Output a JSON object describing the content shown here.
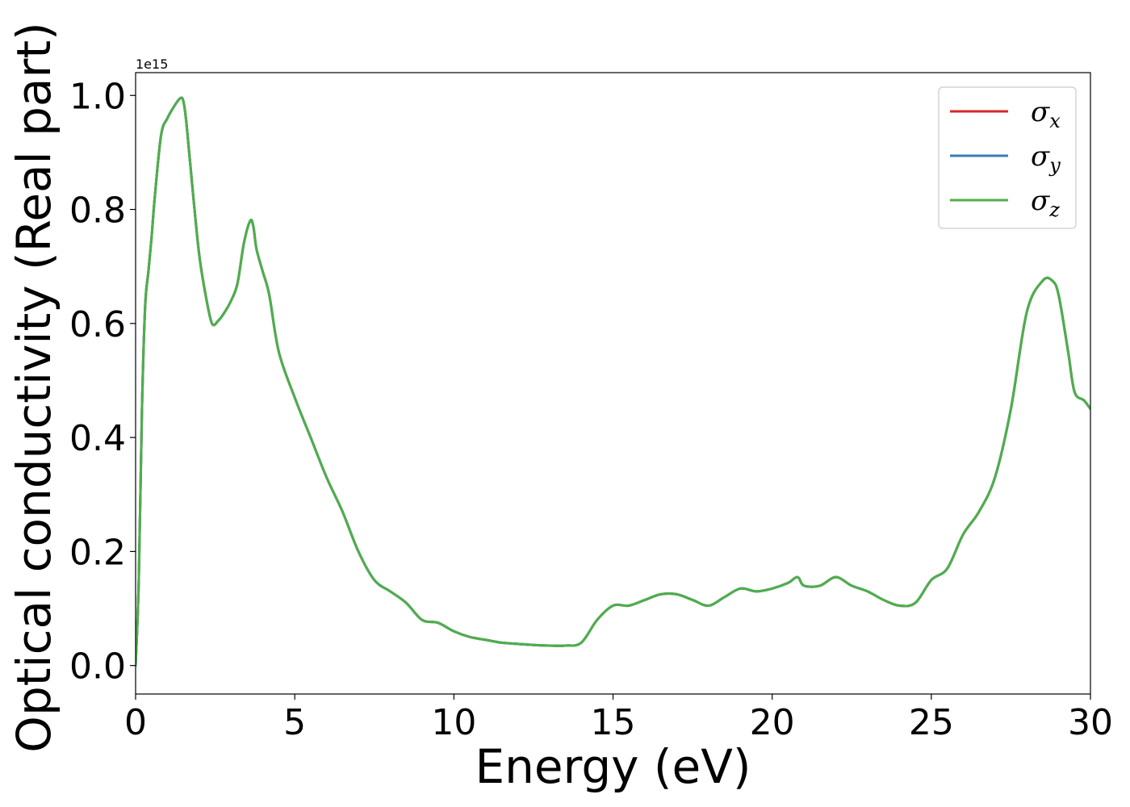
{
  "chart_data": {
    "type": "line",
    "title": "",
    "xlabel": "Energy (eV)",
    "ylabel": "Optical conductivity (Real part)",
    "y_offset_label": "1e15",
    "xlim": [
      0,
      30
    ],
    "ylim": [
      -0.05,
      1.04
    ],
    "x_ticks": [
      0,
      5,
      10,
      15,
      20,
      25,
      30
    ],
    "x_tick_labels": [
      "0",
      "5",
      "10",
      "15",
      "20",
      "25",
      "30"
    ],
    "y_ticks": [
      0.0,
      0.2,
      0.4,
      0.6,
      0.8,
      1.0
    ],
    "y_tick_labels": [
      "0.0",
      "0.2",
      "0.4",
      "0.6",
      "0.8",
      "1.0"
    ],
    "grid": false,
    "legend_position": "top-right",
    "x": [
      0,
      0.1,
      0.2,
      0.3,
      0.4,
      0.5,
      0.6,
      0.8,
      1.0,
      1.2,
      1.4,
      1.5,
      1.6,
      1.8,
      2.0,
      2.2,
      2.4,
      2.6,
      2.8,
      3.0,
      3.2,
      3.4,
      3.6,
      3.7,
      3.8,
      4.0,
      4.2,
      4.5,
      5.0,
      5.5,
      6.0,
      6.5,
      7.0,
      7.5,
      8.0,
      8.5,
      9.0,
      9.5,
      10.0,
      10.5,
      11.0,
      11.5,
      12.0,
      12.5,
      13.0,
      13.5,
      14.0,
      14.5,
      15.0,
      15.5,
      16.0,
      16.5,
      17.0,
      17.5,
      18.0,
      18.5,
      19.0,
      19.5,
      20.0,
      20.5,
      20.8,
      21.0,
      21.5,
      22.0,
      22.5,
      23.0,
      23.5,
      24.0,
      24.5,
      25.0,
      25.5,
      26.0,
      26.5,
      27.0,
      27.5,
      28.0,
      28.5,
      28.8,
      29.0,
      29.3,
      29.5,
      29.8,
      30.0
    ],
    "series": [
      {
        "name": "σx",
        "label_base": "σ",
        "label_sub": "x",
        "color": "#d62728",
        "values": [
          0.0,
          0.15,
          0.45,
          0.63,
          0.69,
          0.75,
          0.82,
          0.93,
          0.96,
          0.98,
          0.995,
          0.99,
          0.95,
          0.83,
          0.72,
          0.65,
          0.6,
          0.605,
          0.62,
          0.64,
          0.67,
          0.74,
          0.78,
          0.77,
          0.73,
          0.69,
          0.65,
          0.55,
          0.47,
          0.4,
          0.33,
          0.27,
          0.2,
          0.15,
          0.13,
          0.11,
          0.08,
          0.075,
          0.06,
          0.05,
          0.045,
          0.04,
          0.038,
          0.036,
          0.035,
          0.035,
          0.04,
          0.08,
          0.105,
          0.105,
          0.115,
          0.125,
          0.125,
          0.115,
          0.105,
          0.12,
          0.135,
          0.13,
          0.135,
          0.145,
          0.155,
          0.14,
          0.14,
          0.155,
          0.14,
          0.13,
          0.115,
          0.105,
          0.11,
          0.15,
          0.17,
          0.23,
          0.27,
          0.33,
          0.45,
          0.62,
          0.675,
          0.675,
          0.65,
          0.55,
          0.48,
          0.465,
          0.45
        ]
      },
      {
        "name": "σy",
        "label_base": "σ",
        "label_sub": "y",
        "color": "#377eb8",
        "values": [
          0.0,
          0.15,
          0.45,
          0.63,
          0.69,
          0.75,
          0.82,
          0.93,
          0.96,
          0.98,
          0.995,
          0.99,
          0.95,
          0.83,
          0.72,
          0.65,
          0.6,
          0.605,
          0.62,
          0.64,
          0.67,
          0.74,
          0.78,
          0.77,
          0.73,
          0.69,
          0.65,
          0.55,
          0.47,
          0.4,
          0.33,
          0.27,
          0.2,
          0.15,
          0.13,
          0.11,
          0.08,
          0.075,
          0.06,
          0.05,
          0.045,
          0.04,
          0.038,
          0.036,
          0.035,
          0.035,
          0.04,
          0.08,
          0.105,
          0.105,
          0.115,
          0.125,
          0.125,
          0.115,
          0.105,
          0.12,
          0.135,
          0.13,
          0.135,
          0.145,
          0.155,
          0.14,
          0.14,
          0.155,
          0.14,
          0.13,
          0.115,
          0.105,
          0.11,
          0.15,
          0.17,
          0.23,
          0.27,
          0.33,
          0.45,
          0.62,
          0.675,
          0.675,
          0.65,
          0.55,
          0.48,
          0.465,
          0.45
        ]
      },
      {
        "name": "σz",
        "label_base": "σ",
        "label_sub": "z",
        "color": "#4daf4a",
        "values": [
          0.0,
          0.15,
          0.45,
          0.63,
          0.69,
          0.75,
          0.82,
          0.93,
          0.96,
          0.98,
          0.995,
          0.99,
          0.95,
          0.83,
          0.72,
          0.65,
          0.6,
          0.605,
          0.62,
          0.64,
          0.67,
          0.74,
          0.78,
          0.77,
          0.73,
          0.69,
          0.65,
          0.55,
          0.47,
          0.4,
          0.33,
          0.27,
          0.2,
          0.15,
          0.13,
          0.11,
          0.08,
          0.075,
          0.06,
          0.05,
          0.045,
          0.04,
          0.038,
          0.036,
          0.035,
          0.035,
          0.04,
          0.08,
          0.105,
          0.105,
          0.115,
          0.125,
          0.125,
          0.115,
          0.105,
          0.12,
          0.135,
          0.13,
          0.135,
          0.145,
          0.155,
          0.14,
          0.14,
          0.155,
          0.14,
          0.13,
          0.115,
          0.105,
          0.11,
          0.15,
          0.17,
          0.23,
          0.27,
          0.33,
          0.45,
          0.62,
          0.675,
          0.675,
          0.65,
          0.55,
          0.48,
          0.465,
          0.45
        ]
      }
    ]
  }
}
